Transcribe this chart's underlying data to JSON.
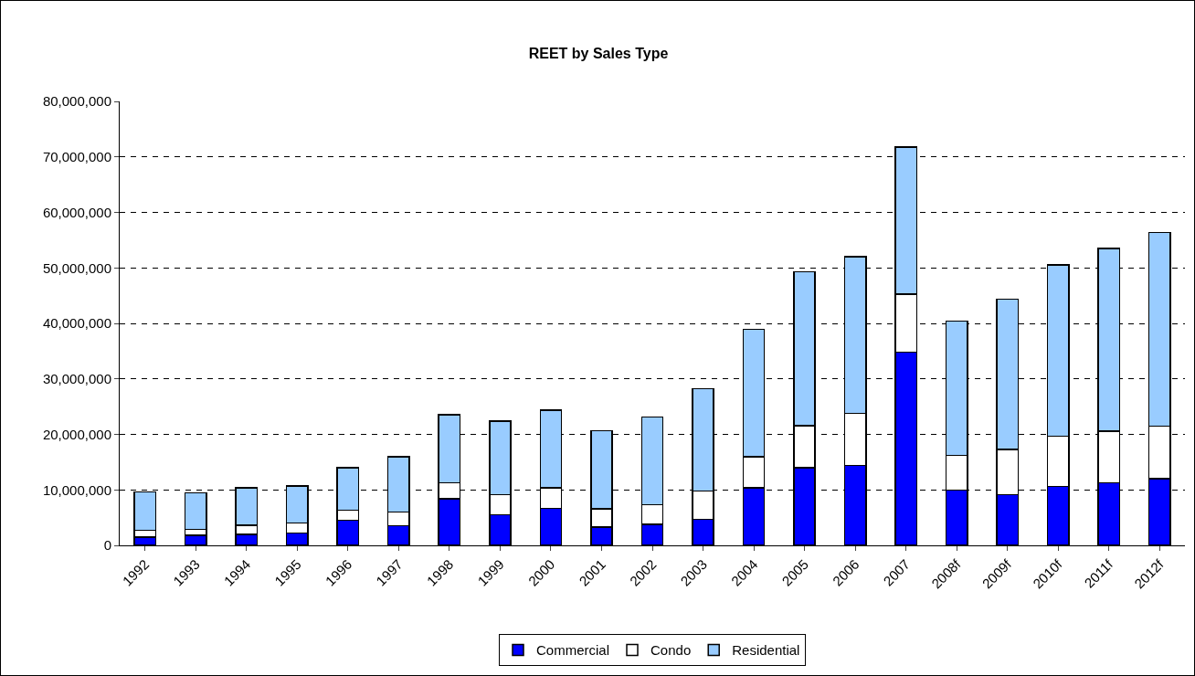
{
  "chart_data": {
    "type": "bar",
    "title": "REET by Sales Type",
    "stacked": true,
    "grid": "y",
    "legend": "bottom",
    "categories": [
      "1992",
      "1993",
      "1994",
      "1995",
      "1996",
      "1997",
      "1998",
      "1999",
      "2000",
      "2001",
      "2002",
      "2003",
      "2004",
      "2005",
      "2006",
      "2007",
      "2008f",
      "2009f",
      "2010f",
      "2011f",
      "2012f"
    ],
    "series": [
      {
        "name": "Commercial",
        "color": "#0000ff",
        "values": [
          1500000,
          1800000,
          2000000,
          2200000,
          4500000,
          3500000,
          8400000,
          5500000,
          6700000,
          3300000,
          3800000,
          4700000,
          10400000,
          14000000,
          14400000,
          34800000,
          10000000,
          9100000,
          10600000,
          11300000,
          12000000
        ]
      },
      {
        "name": "Condo",
        "color": "#ffffff",
        "values": [
          1200000,
          1100000,
          1600000,
          1800000,
          1800000,
          2500000,
          2900000,
          3600000,
          3700000,
          3300000,
          3500000,
          5100000,
          5600000,
          7600000,
          9400000,
          10500000,
          6200000,
          8200000,
          9100000,
          9300000,
          9500000
        ]
      },
      {
        "name": "Residential",
        "color": "#99ccff",
        "values": [
          6900000,
          6600000,
          6800000,
          6700000,
          7700000,
          10000000,
          12200000,
          13300000,
          14000000,
          14100000,
          15800000,
          18400000,
          22900000,
          27700000,
          28200000,
          26500000,
          24200000,
          27100000,
          30800000,
          32900000,
          34900000
        ]
      }
    ],
    "ylim": [
      0,
      80000000
    ],
    "yticks": [
      {
        "value": 0,
        "label": "0"
      },
      {
        "value": 10000000,
        "label": "10,000,000"
      },
      {
        "value": 20000000,
        "label": "20,000,000"
      },
      {
        "value": 30000000,
        "label": "30,000,000"
      },
      {
        "value": 40000000,
        "label": "40,000,000"
      },
      {
        "value": 50000000,
        "label": "50,000,000"
      },
      {
        "value": 60000000,
        "label": "60,000,000"
      },
      {
        "value": 70000000,
        "label": "70,000,000"
      },
      {
        "value": 80000000,
        "label": "80,000,000"
      }
    ]
  }
}
